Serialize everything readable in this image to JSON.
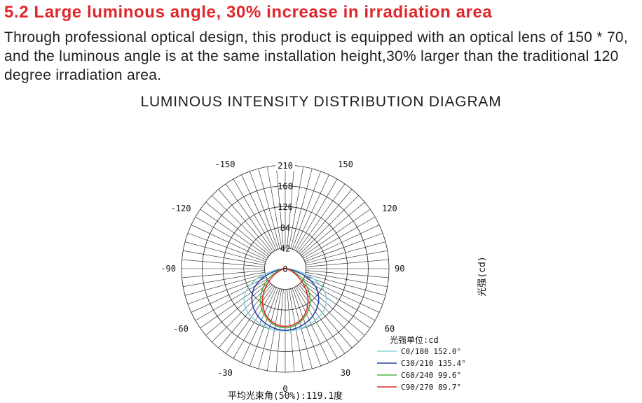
{
  "section": {
    "heading": "5.2 Large luminous angle, 30% increase in irradiation area",
    "body": "Through professional optical design, this product is equipped with an optical lens of 150 * 70, and the luminous angle is at the same installation height,30% larger than the traditional 120 degree irradiation area."
  },
  "chart_data": {
    "type": "polar",
    "title": "LUMINOUS INTENSITY DISTRIBUTION DIAGRAM",
    "radial_ticks": [
      "210",
      "168",
      "126",
      "84",
      "42",
      "0"
    ],
    "radial_max": 210,
    "angle_labels": [
      {
        "text": "-150",
        "angle": -150
      },
      {
        "text": "150",
        "angle": 150
      },
      {
        "text": "-120",
        "angle": -120
      },
      {
        "text": "120",
        "angle": 120
      },
      {
        "text": "-90",
        "angle": -90
      },
      {
        "text": "90",
        "angle": 90
      },
      {
        "text": "-60",
        "angle": -60
      },
      {
        "text": "60",
        "angle": 60
      },
      {
        "text": "-30",
        "angle": -30
      },
      {
        "text": "30",
        "angle": 30
      },
      {
        "text": "0",
        "angle": 0
      }
    ],
    "ylabel": "光强(cd)",
    "unit_label": "光强单位:cd",
    "beam_angle_label": "平均光束角(50%):119.1度",
    "series": [
      {
        "name": "C0/180 152.0°",
        "color": "#86d4dc",
        "angles": [
          -90,
          -80,
          -70,
          -60,
          -50,
          -40,
          -30,
          -20,
          -10,
          0,
          10,
          20,
          30,
          40,
          50,
          60,
          70,
          80,
          90
        ],
        "values": [
          0,
          26,
          62,
          92,
          108,
          117,
          121,
          124,
          126,
          126,
          126,
          124,
          121,
          117,
          108,
          92,
          62,
          26,
          0
        ]
      },
      {
        "name": "C30/210 135.4°",
        "color": "#2740a8",
        "angles": [
          -90,
          -80,
          -70,
          -60,
          -50,
          -40,
          -30,
          -20,
          -10,
          0,
          10,
          20,
          30,
          40,
          50,
          60,
          70,
          80,
          90
        ],
        "values": [
          0,
          14,
          42,
          70,
          88,
          101,
          111,
          118,
          123,
          125,
          123,
          118,
          111,
          101,
          88,
          70,
          42,
          14,
          0
        ]
      },
      {
        "name": "C60/240 99.6°",
        "color": "#4bb542",
        "angles": [
          -90,
          -80,
          -70,
          -60,
          -50,
          -40,
          -30,
          -20,
          -10,
          0,
          10,
          20,
          30,
          40,
          50,
          60,
          70,
          80,
          90
        ],
        "values": [
          0,
          6,
          18,
          38,
          58,
          78,
          95,
          108,
          117,
          120,
          117,
          108,
          95,
          78,
          58,
          38,
          18,
          6,
          0
        ]
      },
      {
        "name": "C90/270 89.7°",
        "color": "#e0262b",
        "angles": [
          -90,
          -80,
          -70,
          -60,
          -50,
          -40,
          -30,
          -20,
          -10,
          0,
          10,
          20,
          30,
          40,
          50,
          60,
          70,
          80,
          90
        ],
        "values": [
          0,
          4,
          12,
          27,
          47,
          70,
          90,
          105,
          114,
          117,
          114,
          105,
          90,
          70,
          47,
          27,
          12,
          4,
          0
        ]
      }
    ]
  }
}
